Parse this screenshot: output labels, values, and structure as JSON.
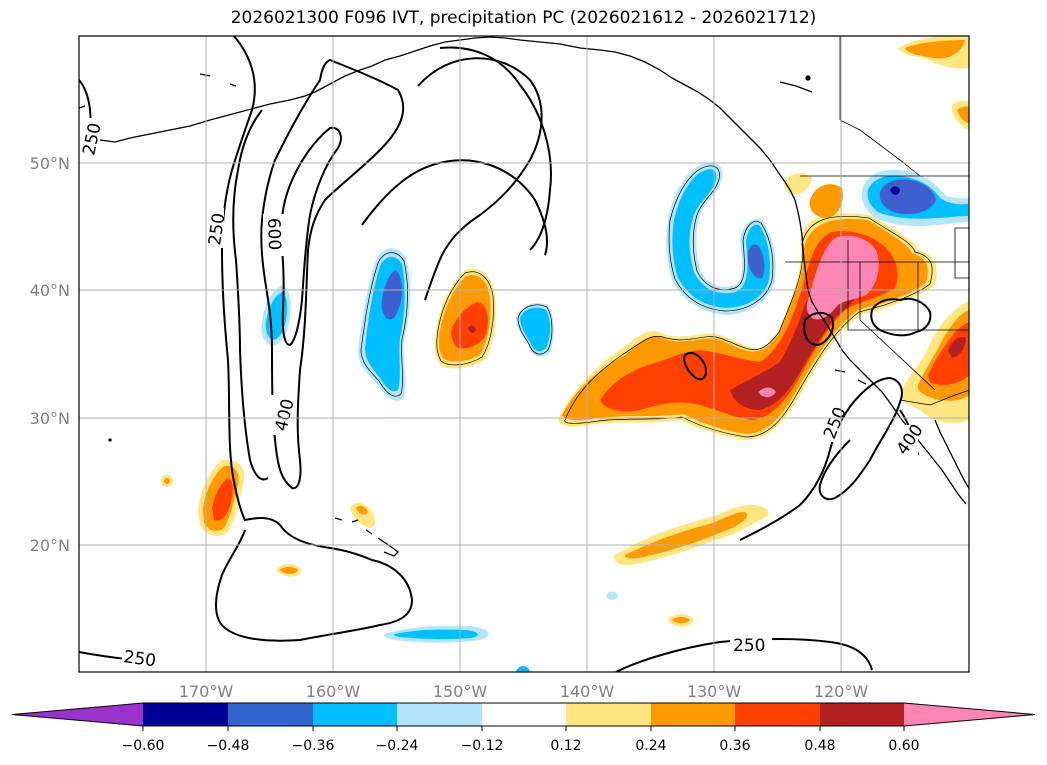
{
  "title": "2026021300 F096 IVT, precipitation PC (2026021612 - 2026021712)",
  "map": {
    "lon_range": [
      -180,
      -110
    ],
    "lat_range": [
      10,
      60
    ],
    "lon_ticks": [
      {
        "value": -170,
        "label": "170°W"
      },
      {
        "value": -160,
        "label": "160°W"
      },
      {
        "value": -150,
        "label": "150°W"
      },
      {
        "value": -140,
        "label": "140°W"
      },
      {
        "value": -130,
        "label": "130°W"
      },
      {
        "value": -120,
        "label": "120°W"
      }
    ],
    "lat_ticks": [
      {
        "value": 20,
        "label": "20°N"
      },
      {
        "value": 30,
        "label": "30°N"
      },
      {
        "value": 40,
        "label": "40°N"
      },
      {
        "value": 50,
        "label": "50°N"
      }
    ],
    "ivt_contour_levels": [
      250,
      400,
      600
    ],
    "contour_labels": [
      {
        "text": "250",
        "lon": -179,
        "lat": 52.5
      },
      {
        "text": "250",
        "lon": -169,
        "lat": 45
      },
      {
        "text": "600",
        "lon": -164,
        "lat": 44.5
      },
      {
        "text": "400",
        "lon": -163,
        "lat": 30.5
      },
      {
        "text": "250",
        "lon": -175,
        "lat": 10.8
      },
      {
        "text": "250",
        "lon": -127.2,
        "lat": 12.3
      },
      {
        "text": "250",
        "lon": -121,
        "lat": 29.5
      },
      {
        "text": "400",
        "lon": -114.5,
        "lat": 27.5
      }
    ]
  },
  "colorbar": {
    "levels": [
      "−0.60",
      "−0.48",
      "−0.36",
      "−0.24",
      "−0.12",
      "0.12",
      "0.24",
      "0.36",
      "0.48",
      "0.60"
    ],
    "colors": [
      "#9933cc",
      "#000099",
      "#3366cc",
      "#00bfff",
      "#b3e5fc",
      "#ffffff",
      "#ffe680",
      "#ff9900",
      "#ff4000",
      "#b22222",
      "#ff85b3"
    ]
  },
  "colors": {
    "negative_strong": "#3f5fcf",
    "negative_deep": "#00bfff",
    "negative_light": "#b3e5fc",
    "positive_light": "#ffe680",
    "positive_mid": "#ff9900",
    "positive_high": "#ff4000",
    "positive_higher": "#b22222",
    "positive_max": "#ff85b3"
  }
}
